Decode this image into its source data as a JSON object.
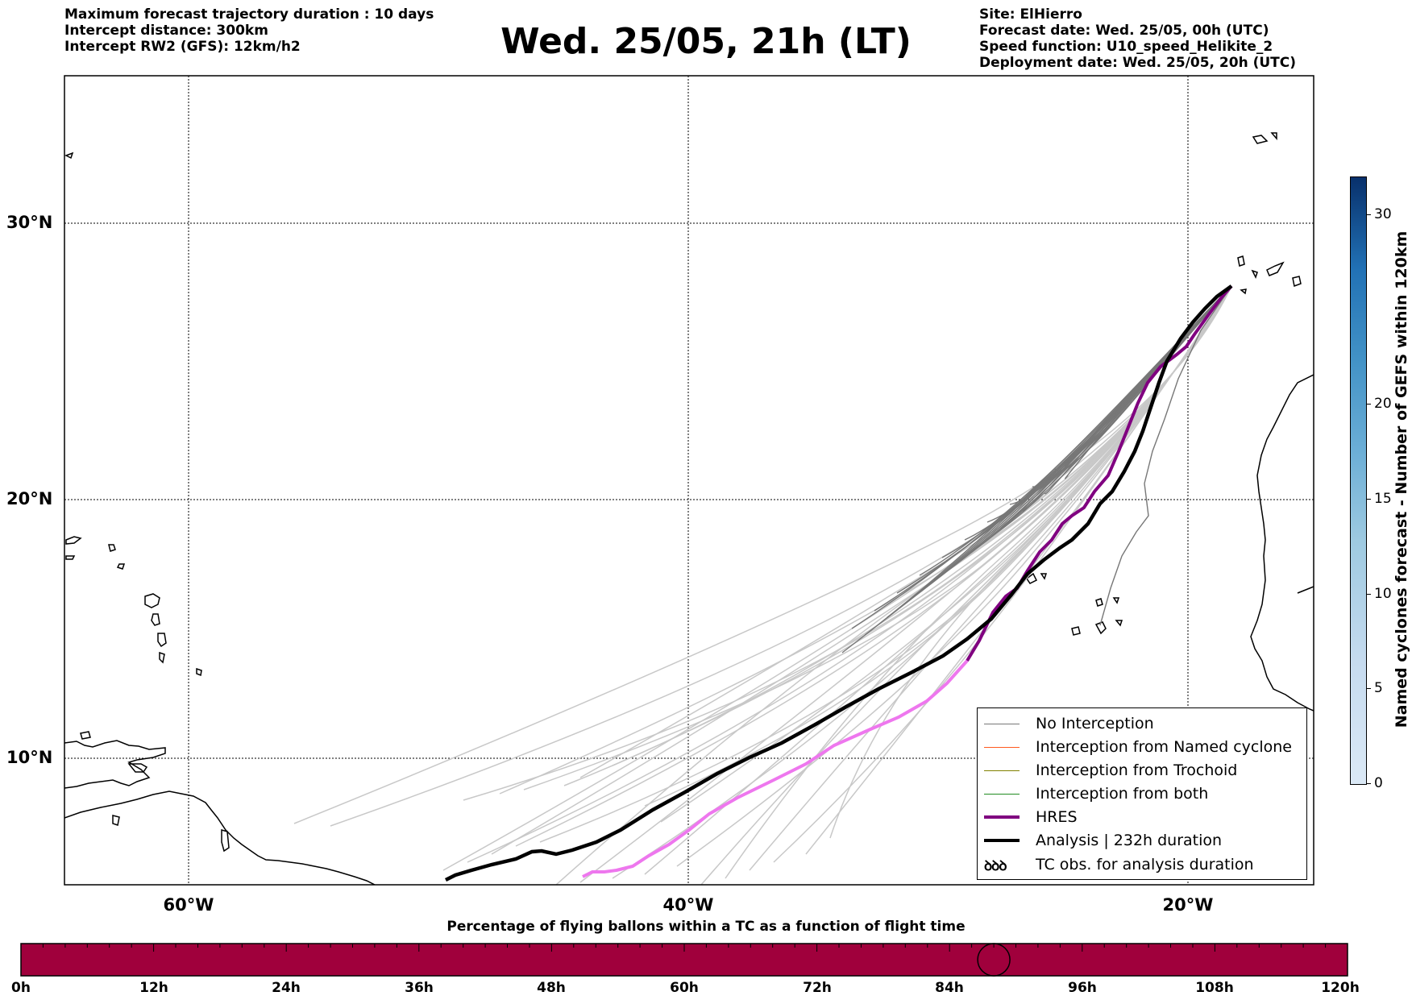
{
  "header": {
    "left_lines": [
      "Maximum forecast trajectory duration : 10 days",
      "Intercept distance: 300km",
      "Intercept RW2 (GFS):  12km/h2"
    ],
    "title": "Wed. 25/05, 21h (LT)",
    "right_lines": [
      "Site: ElHierro",
      "Forecast date: Wed. 25/05, 00h (UTC)",
      "Speed function: U10_speed_Helikite_2",
      "Deployment date: Wed. 25/05, 20h (UTC)"
    ]
  },
  "map": {
    "lat_labels": [
      "30°N",
      "20°N",
      "10°N"
    ],
    "lon_labels": [
      "60°W",
      "40°W",
      "20°W"
    ],
    "colors": {
      "no_interception": "#777777",
      "light_trajectories": "#c8c8c8",
      "named_cyclone": "#ff5a1f",
      "trochoid": "#808000",
      "both": "#228b22",
      "hres": "#800080",
      "hres_late": "#ee77ee",
      "analysis": "#000000"
    }
  },
  "legend": {
    "items": [
      {
        "label": "No Interception",
        "color": "#777777",
        "width": 1
      },
      {
        "label": "Interception from Named cyclone",
        "color": "#ff5a1f",
        "width": 1
      },
      {
        "label": "Interception from Trochoid",
        "color": "#808000",
        "width": 1
      },
      {
        "label": "Interception from both",
        "color": "#228b22",
        "width": 1
      },
      {
        "label": "HRES",
        "color": "#800080",
        "width": 4
      },
      {
        "label": "Analysis | 232h duration",
        "color": "#000000",
        "width": 4
      }
    ],
    "tc_symbol": "ꝺꝺꝺ",
    "tc_label": "TC obs. for analysis duration"
  },
  "colorbar": {
    "title": "Named cyclones forecast - Number of GEFS within 120km",
    "ticks": [
      "0",
      "5",
      "10",
      "15",
      "20",
      "30"
    ]
  },
  "timebar": {
    "title": "Percentage of flying ballons within a TC as a function of flight time",
    "labels": [
      "0h",
      "12h",
      "24h",
      "36h",
      "48h",
      "60h",
      "72h",
      "84h",
      "96h",
      "108h",
      "120h"
    ],
    "fill_color": "#a0003c",
    "marker_hour": 88
  }
}
